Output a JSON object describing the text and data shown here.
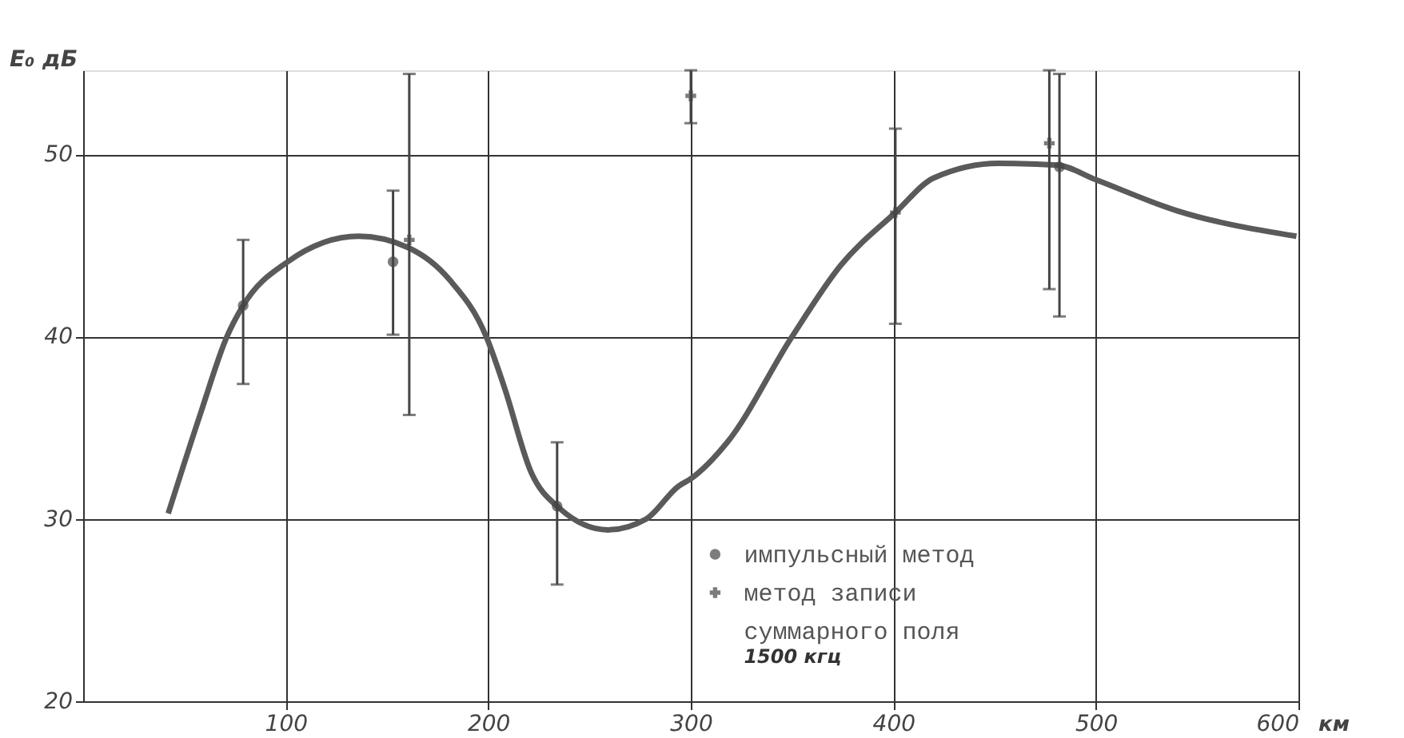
{
  "chart_data": {
    "type": "line",
    "xlabel": "км",
    "ylabel": "E₀ дБ",
    "xlim": [
      0,
      600
    ],
    "ylim": [
      20,
      54.6
    ],
    "xticks": [
      100,
      200,
      300,
      400,
      500,
      600
    ],
    "yticks": [
      20,
      30,
      40,
      50
    ],
    "grid": true,
    "legend": "bottom right",
    "annotations": [
      "1500 кгц"
    ],
    "series": [
      {
        "color": "#5a5a5a",
        "x": [
          42,
          58,
          71,
          79,
          101,
          136,
          160,
          181,
          199,
          208,
          221,
          235,
          259,
          278,
          294,
          300,
          318,
          350,
          374,
          401,
          420,
          452,
          481,
          500,
          540,
          599
        ],
        "values": [
          30.3,
          35.8,
          40,
          41.7,
          44.1,
          45.5,
          44.9,
          43.1,
          40,
          37.2,
          32.6,
          30.6,
          29.4,
          30.0,
          31.8,
          32.2,
          34.2,
          40,
          43.9,
          46.8,
          48.7,
          49.5,
          49.4,
          48.6,
          46.9,
          45.5
        ]
      },
      {
        "name": "импульсный метод",
        "type": "scatter",
        "marker": "circle",
        "color": "#444444",
        "x": [
          79,
          153,
          234,
          482
        ],
        "values": [
          41.7,
          44.1,
          30.7,
          49.3
        ],
        "errors": [
          [
            37.4,
            45.3
          ],
          [
            40.1,
            48.0
          ],
          [
            26.4,
            34.2
          ],
          [
            41.1,
            54.4
          ]
        ]
      },
      {
        "name": "метод записи суммарного поля",
        "type": "scatter",
        "marker": "cross",
        "color": "#444444",
        "x": [
          161,
          300,
          401,
          477
        ],
        "values": [
          45.3,
          53.2,
          46.8,
          50.6
        ],
        "errors": [
          [
            35.7,
            54.4
          ],
          [
            51.7,
            54.6
          ],
          [
            40.7,
            51.4
          ],
          [
            42.6,
            54.6
          ]
        ]
      }
    ]
  }
}
